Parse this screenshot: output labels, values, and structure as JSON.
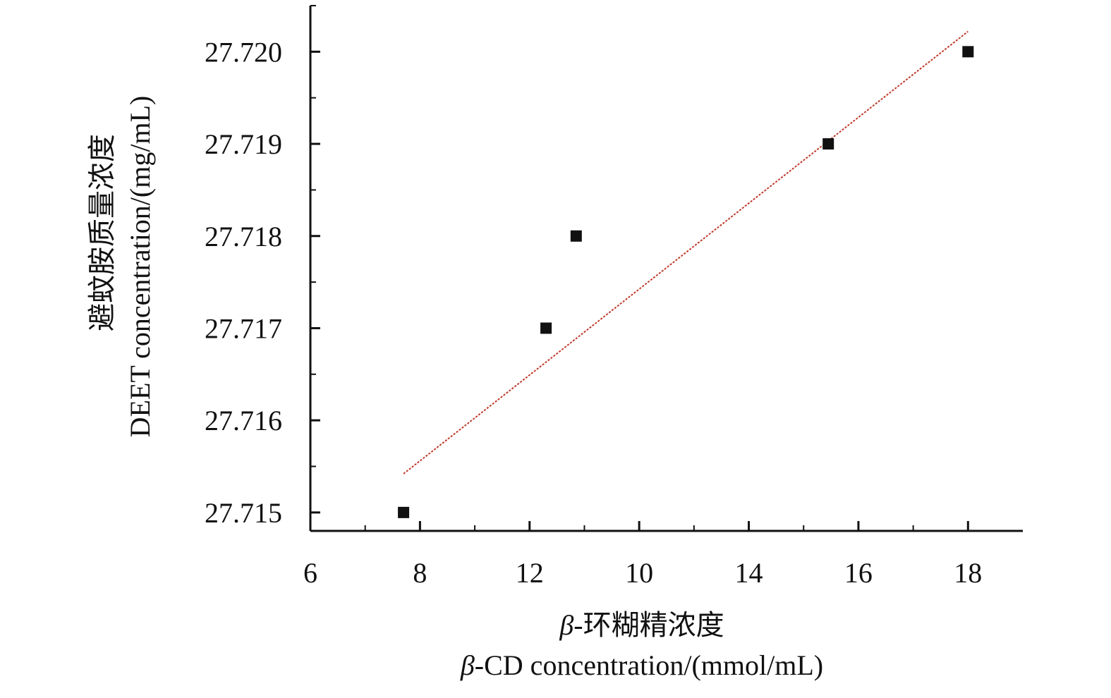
{
  "chart_data": {
    "type": "scatter",
    "xlabel": "β-CD concentration/(mmol/mL)",
    "xlabel_zh": "-环糊精浓度",
    "xlabel_en_suffix": "-CD concentration/(mmol/mL)",
    "xlabel_symbol": "β",
    "ylabel": "DEET concentration/(mg/mL)",
    "ylabel_zh": "避蚊胺质量浓度",
    "x_ticks": [
      "6",
      "8",
      "12",
      "10",
      "14",
      "16",
      "18"
    ],
    "y_ticks": [
      "27.715",
      "27.716",
      "27.717",
      "27.718",
      "27.719",
      "27.720"
    ],
    "xlim": [
      6,
      19
    ],
    "ylim": [
      27.7148,
      27.7205
    ],
    "points": [
      {
        "x": 7.7,
        "y": 27.715
      },
      {
        "x": 10.3,
        "y": 27.717
      },
      {
        "x": 10.85,
        "y": 27.718
      },
      {
        "x": 15.45,
        "y": 27.719
      },
      {
        "x": 18.0,
        "y": 27.72
      }
    ],
    "fit_line": {
      "x": [
        7.7,
        18.0
      ],
      "y": [
        27.71542,
        27.72022
      ]
    },
    "colors": {
      "marker": "#111111",
      "fit": "#c0392b",
      "axis": "#111111"
    },
    "grid": false,
    "legend": "none"
  }
}
